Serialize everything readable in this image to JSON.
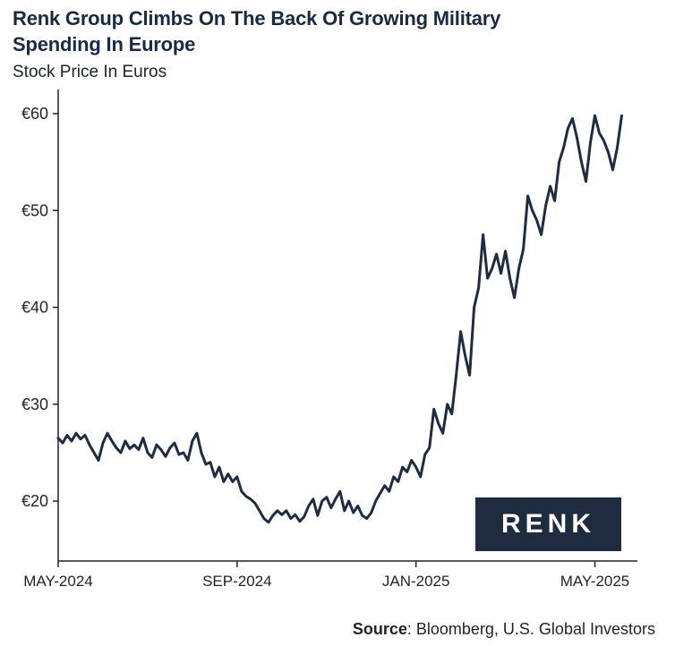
{
  "header": {
    "title": "Renk Group Climbs On The Back Of Growing Military Spending In Europe",
    "subtitle": "Stock Price In Euros"
  },
  "footer": {
    "source_label": "Source",
    "source_text": ": Bloomberg, U.S. Global Investors"
  },
  "logo": {
    "text": "RENK"
  },
  "colors": {
    "line": "#1f2c3f",
    "title": "#1b2a41",
    "logo_bg": "#1f2c3f"
  },
  "chart_data": {
    "type": "line",
    "title": "Renk Group Climbs On The Back Of Growing Military Spending In Europe",
    "subtitle": "Stock Price In Euros",
    "xlabel": "",
    "ylabel": "",
    "ylim": [
      14,
      61
    ],
    "yticks": [
      20,
      30,
      40,
      50,
      60
    ],
    "ytick_labels": [
      "€20",
      "€30",
      "€40",
      "€50",
      "€60"
    ],
    "xticks": [
      {
        "label": "MAY-2024",
        "month_index": 0
      },
      {
        "label": "SEP-2024",
        "month_index": 4
      },
      {
        "label": "JAN-2025",
        "month_index": 8
      },
      {
        "label": "MAY-2025",
        "month_index": 12
      }
    ],
    "xlim_months": [
      0,
      12.65
    ],
    "grid": false,
    "series": [
      {
        "name": "Renk Group stock price (EUR)",
        "x_months": [
          0.0,
          0.1,
          0.2,
          0.3,
          0.4,
          0.5,
          0.6,
          0.7,
          0.8,
          0.9,
          1.0,
          1.1,
          1.2,
          1.3,
          1.4,
          1.5,
          1.6,
          1.7,
          1.8,
          1.9,
          2.0,
          2.1,
          2.2,
          2.3,
          2.4,
          2.5,
          2.6,
          2.7,
          2.8,
          2.9,
          3.0,
          3.1,
          3.2,
          3.3,
          3.4,
          3.5,
          3.6,
          3.7,
          3.8,
          3.9,
          4.0,
          4.1,
          4.2,
          4.3,
          4.4,
          4.5,
          4.6,
          4.7,
          4.8,
          4.9,
          5.0,
          5.1,
          5.2,
          5.3,
          5.4,
          5.5,
          5.6,
          5.7,
          5.8,
          5.9,
          6.0,
          6.1,
          6.2,
          6.3,
          6.4,
          6.5,
          6.6,
          6.7,
          6.8,
          6.9,
          7.0,
          7.1,
          7.2,
          7.3,
          7.4,
          7.5,
          7.6,
          7.7,
          7.8,
          7.9,
          8.0,
          8.1,
          8.2,
          8.3,
          8.4,
          8.5,
          8.6,
          8.7,
          8.8,
          8.9,
          9.0,
          9.1,
          9.2,
          9.3,
          9.4,
          9.5,
          9.6,
          9.7,
          9.8,
          9.9,
          10.0,
          10.1,
          10.2,
          10.3,
          10.4,
          10.5,
          10.6,
          10.7,
          10.8,
          10.9,
          11.0,
          11.1,
          11.2,
          11.3,
          11.4,
          11.5,
          11.6,
          11.7,
          11.8,
          11.9,
          12.0,
          12.1,
          12.2,
          12.3,
          12.4,
          12.5,
          12.6
        ],
        "values": [
          26.5,
          26.0,
          26.8,
          26.2,
          27.0,
          26.4,
          26.8,
          25.8,
          25.0,
          24.2,
          26.0,
          27.0,
          26.2,
          25.5,
          25.0,
          26.2,
          25.4,
          25.8,
          25.3,
          26.5,
          25.0,
          24.5,
          25.8,
          25.3,
          24.6,
          25.5,
          26.0,
          24.8,
          25.0,
          24.2,
          26.2,
          27.0,
          25.0,
          23.8,
          24.0,
          22.5,
          23.5,
          22.0,
          22.8,
          22.0,
          22.5,
          21.0,
          20.5,
          20.2,
          19.8,
          19.0,
          18.2,
          17.8,
          18.5,
          19.0,
          18.6,
          19.0,
          18.2,
          18.6,
          17.9,
          18.4,
          19.5,
          20.2,
          18.5,
          20.0,
          20.4,
          19.3,
          20.2,
          21.0,
          19.0,
          20.0,
          18.8,
          19.5,
          18.5,
          18.2,
          18.8,
          20.0,
          20.8,
          21.6,
          21.0,
          22.5,
          22.0,
          23.5,
          23.0,
          24.2,
          23.5,
          22.5,
          24.8,
          25.5,
          29.5,
          28.0,
          27.0,
          30.0,
          29.0,
          33.0,
          37.5,
          35.0,
          33.0,
          40.0,
          42.0,
          47.5,
          43.0,
          44.0,
          45.5,
          43.5,
          45.8,
          43.0,
          41.0,
          44.0,
          46.0,
          51.5,
          50.0,
          49.0,
          47.5,
          50.5,
          52.5,
          51.0,
          55.0,
          56.5,
          58.5,
          59.5,
          57.5,
          55.0,
          53.0,
          57.0,
          59.8,
          58.0,
          57.2,
          56.0,
          54.2,
          56.5,
          59.8
        ]
      }
    ]
  }
}
